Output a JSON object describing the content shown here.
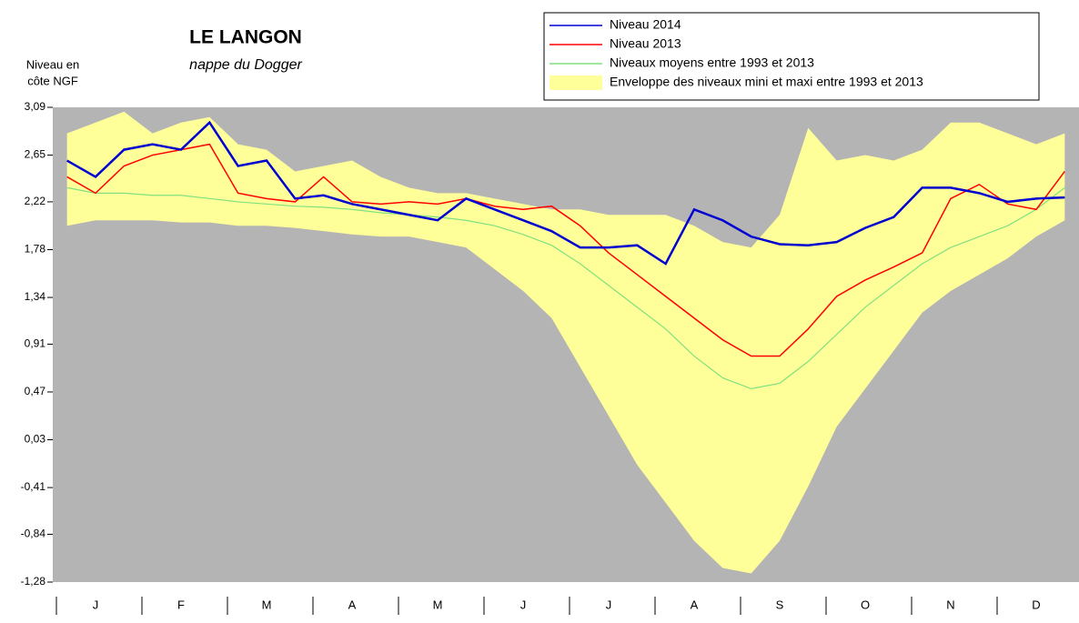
{
  "chart_data": {
    "type": "line",
    "title": "LE LANGON",
    "subtitle": "nappe du Dogger",
    "y_label": [
      "Niveau en",
      "côte NGF"
    ],
    "categories": [
      null,
      "J",
      null,
      null,
      "F",
      null,
      null,
      "M",
      null,
      null,
      "A",
      null,
      null,
      "M",
      null,
      null,
      "J",
      null,
      null,
      "J",
      null,
      null,
      "A",
      null,
      null,
      "S",
      null,
      null,
      "O",
      null,
      null,
      "N",
      null,
      null,
      "D",
      null
    ],
    "ylim": [
      -1.28,
      3.09
    ],
    "yticks": [
      {
        "value": 3.09,
        "label": "3,09"
      },
      {
        "value": 2.65,
        "label": "2,65"
      },
      {
        "value": 2.22,
        "label": "2,22"
      },
      {
        "value": 1.78,
        "label": "1,78"
      },
      {
        "value": 1.34,
        "label": "1,34"
      },
      {
        "value": 0.91,
        "label": "0,91"
      },
      {
        "value": 0.47,
        "label": "0,47"
      },
      {
        "value": 0.03,
        "label": "0,03"
      },
      {
        "value": -0.41,
        "label": "-0,41"
      },
      {
        "value": -0.84,
        "label": "-0,84"
      },
      {
        "value": -1.28,
        "label": "-1,28"
      }
    ],
    "background": "#b4b4b4",
    "series": [
      {
        "name": "Niveau 2014",
        "color": "#0000d0",
        "width": 2.5,
        "values": [
          2.6,
          2.45,
          2.7,
          2.75,
          2.7,
          2.95,
          2.55,
          2.6,
          2.25,
          2.28,
          2.2,
          2.15,
          2.1,
          2.05,
          2.25,
          2.15,
          2.05,
          1.95,
          1.8,
          1.8,
          1.82,
          1.65,
          2.15,
          2.05,
          1.9,
          1.83,
          1.82,
          1.85,
          1.98,
          2.08,
          2.35,
          2.35,
          2.3,
          2.22,
          2.25,
          2.26
        ]
      },
      {
        "name": "Niveau 2013",
        "color": "#ff0000",
        "width": 1.5,
        "values": [
          2.45,
          2.3,
          2.55,
          2.65,
          2.7,
          2.75,
          2.3,
          2.25,
          2.22,
          2.45,
          2.22,
          2.2,
          2.22,
          2.2,
          2.25,
          2.18,
          2.15,
          2.18,
          2.0,
          1.75,
          1.55,
          1.35,
          1.15,
          0.95,
          0.8,
          0.8,
          1.05,
          1.35,
          1.5,
          1.62,
          1.75,
          2.25,
          2.38,
          2.2,
          2.15,
          2.5
        ]
      },
      {
        "name": "Niveaux moyens entre 1993 et 2013",
        "color": "#80e080",
        "width": 1.2,
        "values": [
          2.35,
          2.3,
          2.3,
          2.28,
          2.28,
          2.25,
          2.22,
          2.2,
          2.18,
          2.17,
          2.15,
          2.12,
          2.1,
          2.08,
          2.05,
          2.0,
          1.92,
          1.82,
          1.65,
          1.45,
          1.25,
          1.05,
          0.8,
          0.6,
          0.5,
          0.55,
          0.75,
          1.0,
          1.25,
          1.45,
          1.65,
          1.8,
          1.9,
          2.0,
          2.15,
          2.35
        ]
      },
      {
        "name": "Enveloppe des niveaux mini et maxi entre 1993 et 2013",
        "color": "#ffff99",
        "kind": "band",
        "high": [
          2.85,
          2.95,
          3.05,
          2.85,
          2.95,
          3.0,
          2.75,
          2.7,
          2.5,
          2.55,
          2.6,
          2.45,
          2.35,
          2.3,
          2.3,
          2.25,
          2.2,
          2.15,
          2.15,
          2.1,
          2.1,
          2.1,
          2.0,
          1.85,
          1.8,
          2.1,
          2.9,
          2.6,
          2.65,
          2.6,
          2.7,
          2.95,
          2.95,
          2.85,
          2.75,
          2.85
        ],
        "low": [
          2.0,
          2.05,
          2.05,
          2.05,
          2.03,
          2.03,
          2.0,
          2.0,
          1.98,
          1.95,
          1.92,
          1.9,
          1.9,
          1.85,
          1.8,
          1.6,
          1.4,
          1.15,
          0.7,
          0.25,
          -0.2,
          -0.55,
          -0.9,
          -1.15,
          -1.2,
          -0.9,
          -0.4,
          0.15,
          0.5,
          0.85,
          1.2,
          1.4,
          1.55,
          1.7,
          1.9,
          2.05
        ]
      }
    ]
  }
}
